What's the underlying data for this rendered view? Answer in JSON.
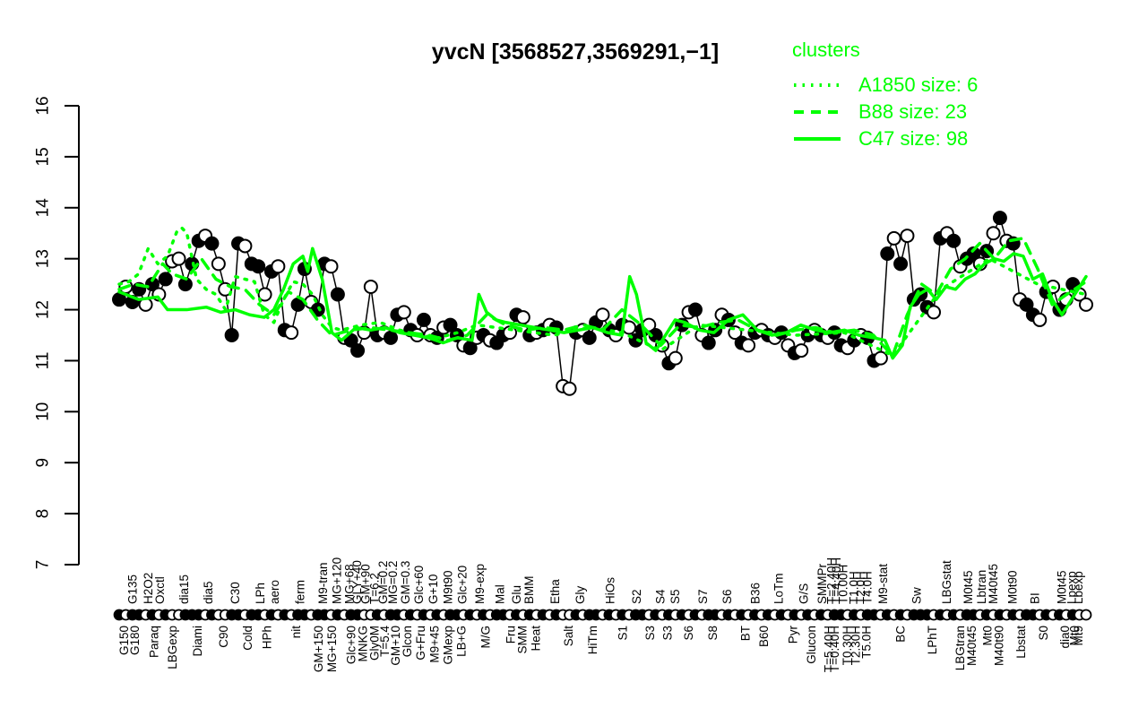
{
  "title": "yvcN [3568527,3569291,−1]",
  "legend": {
    "header": "clusters",
    "color": "#00ff00",
    "items": [
      {
        "label": "A1850 size: 6",
        "style": "dotted"
      },
      {
        "label": "B88 size: 23",
        "style": "dashed"
      },
      {
        "label": "C47 size: 98",
        "style": "solid"
      }
    ]
  },
  "chart_data": {
    "type": "line",
    "title": "yvcN [3568527,3569291,−1]",
    "xlabel": "",
    "ylabel": "",
    "ylim": [
      7,
      16
    ],
    "y_ticks": [
      7,
      8,
      9,
      10,
      11,
      12,
      13,
      14,
      15,
      16
    ],
    "grid": false,
    "legend_position": "top-right",
    "colors": {
      "expression": "#000000",
      "clusters": "#00ff00"
    },
    "x_axis": {
      "top_labels": [
        [
          "G135",
          0.014
        ],
        [
          "H2O2",
          0.03
        ],
        [
          "Oxctl",
          0.042
        ],
        [
          "dia15",
          0.067
        ],
        [
          "dia5",
          0.092
        ],
        [
          "C30",
          0.12
        ],
        [
          "LPh",
          0.146
        ],
        [
          "aero",
          0.161
        ],
        [
          "ferm",
          0.187
        ],
        [
          "M9-tran",
          0.211
        ],
        [
          "MG+120",
          0.225
        ],
        [
          "MG+68",
          0.238
        ],
        [
          "GLY+40",
          0.246
        ],
        [
          "GM+90",
          0.255
        ],
        [
          "T=6.2",
          0.264
        ],
        [
          "GM=0.2",
          0.273
        ],
        [
          "MG=0.2",
          0.283
        ],
        [
          "GM=0.3",
          0.296
        ],
        [
          "Glc+60",
          0.31
        ],
        [
          "G+10",
          0.325
        ],
        [
          "M9t90",
          0.34
        ],
        [
          "Glc+20",
          0.355
        ],
        [
          "M9-exp",
          0.373
        ],
        [
          "Mal",
          0.394
        ],
        [
          "Glu",
          0.411
        ],
        [
          "BMM",
          0.424
        ],
        [
          "Etha",
          0.451
        ],
        [
          "Gly",
          0.477
        ],
        [
          "HiOs",
          0.508
        ],
        [
          "S2",
          0.535
        ],
        [
          "S4",
          0.56
        ],
        [
          "S5",
          0.575
        ],
        [
          "S7",
          0.604
        ],
        [
          "S6",
          0.629
        ],
        [
          "B36",
          0.658
        ],
        [
          "LoTm",
          0.682
        ],
        [
          "G/S",
          0.708
        ],
        [
          "SMMPr",
          0.727
        ],
        [
          "T=2.40H",
          0.737
        ],
        [
          "T=4.40H",
          0.742
        ],
        [
          "T0.00H",
          0.749
        ],
        [
          "T1.0H",
          0.76
        ],
        [
          "T2.0H",
          0.767
        ],
        [
          "T4.0H",
          0.774
        ],
        [
          "M9-stat",
          0.79
        ],
        [
          "Sw",
          0.825
        ],
        [
          "LBGstat",
          0.856
        ],
        [
          "M0t45",
          0.878
        ],
        [
          "Lbtran",
          0.892
        ],
        [
          "M40t45",
          0.904
        ],
        [
          "M0t90",
          0.924
        ],
        [
          "BI",
          0.947
        ],
        [
          "M0t45",
          0.975
        ],
        [
          "Lpexp",
          0.985
        ],
        [
          "Lbexp",
          0.992
        ]
      ],
      "bottom_labels": [
        [
          "G150",
          0.005
        ],
        [
          "G180",
          0.016
        ],
        [
          "Paraq",
          0.036
        ],
        [
          "LBGexp",
          0.055
        ],
        [
          "Diami",
          0.081
        ],
        [
          "C90",
          0.108
        ],
        [
          "Cold",
          0.133
        ],
        [
          "HPh",
          0.153
        ],
        [
          "nit",
          0.183
        ],
        [
          "GM+150",
          0.206
        ],
        [
          "MG+150",
          0.22
        ],
        [
          "Glc+90",
          0.24
        ],
        [
          "MNKG",
          0.252
        ],
        [
          "Gly0M",
          0.264
        ],
        [
          "T=5.4",
          0.275
        ],
        [
          "GM+10",
          0.286
        ],
        [
          "Glcon",
          0.298
        ],
        [
          "G+Fru",
          0.312
        ],
        [
          "M9+45",
          0.326
        ],
        [
          "GMexp",
          0.34
        ],
        [
          "LB+G",
          0.354
        ],
        [
          "M/G",
          0.379
        ],
        [
          "Fru",
          0.405
        ],
        [
          "SMM",
          0.417
        ],
        [
          "Heat",
          0.431
        ],
        [
          "Salt",
          0.465
        ],
        [
          "HiTm",
          0.49
        ],
        [
          "S1",
          0.521
        ],
        [
          "S3",
          0.549
        ],
        [
          "S3",
          0.567
        ],
        [
          "S6",
          0.589
        ],
        [
          "S8",
          0.614
        ],
        [
          "BT",
          0.648
        ],
        [
          "B60",
          0.667
        ],
        [
          "Pyr",
          0.697
        ],
        [
          "Glucon",
          0.716
        ],
        [
          "T=5.40H",
          0.734
        ],
        [
          "T=0.40H",
          0.74
        ],
        [
          "T0.30H",
          0.753
        ],
        [
          "T2.30H",
          0.762
        ],
        [
          "T5.0H",
          0.773
        ],
        [
          "BC",
          0.808
        ],
        [
          "LPhT",
          0.841
        ],
        [
          "LBGtran",
          0.87
        ],
        [
          "M40t45",
          0.882
        ],
        [
          "Mt0",
          0.898
        ],
        [
          "M40t90",
          0.91
        ],
        [
          "Lbstat",
          0.933
        ],
        [
          "S0",
          0.956
        ],
        [
          "dia0",
          0.978
        ],
        [
          "Mt0",
          0.988
        ],
        [
          "Mt9",
          0.992
        ]
      ]
    },
    "series": [
      {
        "name": "gene expression (log2)",
        "kind": "points-line",
        "color": "#000000",
        "markers": "foffofofoofffofooffoffofofoffoffofoffoofoffofofofoffofofoffofofofofoofoffofofoffofofofofoffofofofofofofofofoffofoffofofofffofofoffofofofoffofofof",
        "values": [
          12.2,
          12.45,
          12.15,
          12.4,
          12.1,
          12.5,
          12.3,
          12.6,
          12.95,
          13.0,
          12.5,
          12.9,
          13.35,
          13.45,
          13.3,
          12.9,
          12.4,
          11.5,
          13.3,
          13.25,
          12.9,
          12.85,
          12.3,
          12.75,
          12.85,
          11.6,
          11.55,
          12.1,
          12.8,
          12.15,
          12.0,
          12.9,
          12.85,
          12.3,
          11.45,
          11.4,
          11.2,
          11.55,
          12.45,
          11.5,
          11.55,
          11.45,
          11.9,
          11.95,
          11.6,
          11.5,
          11.8,
          11.5,
          11.45,
          11.65,
          11.7,
          11.5,
          11.3,
          11.25,
          11.45,
          11.5,
          11.4,
          11.35,
          11.5,
          11.55,
          11.9,
          11.85,
          11.5,
          11.55,
          11.6,
          11.7,
          11.65,
          10.5,
          10.45,
          11.55,
          11.6,
          11.45,
          11.75,
          11.9,
          11.6,
          11.5,
          11.7,
          11.65,
          11.4,
          11.6,
          11.7,
          11.5,
          11.3,
          10.95,
          11.05,
          11.7,
          11.95,
          12.0,
          11.5,
          11.35,
          11.6,
          11.9,
          11.8,
          11.55,
          11.35,
          11.3,
          11.55,
          11.6,
          11.5,
          11.45,
          11.55,
          11.3,
          11.15,
          11.2,
          11.5,
          11.6,
          11.5,
          11.45,
          11.55,
          11.3,
          11.25,
          11.4,
          11.5,
          11.45,
          11.0,
          11.05,
          13.1,
          13.4,
          12.9,
          13.45,
          12.2,
          12.3,
          12.05,
          11.95,
          13.4,
          13.5,
          13.35,
          12.85,
          13.0,
          13.1,
          12.9,
          13.15,
          13.5,
          13.8,
          13.35,
          13.3,
          12.2,
          12.1,
          11.9,
          11.8,
          12.35,
          12.45,
          12.0,
          12.2,
          12.5,
          12.3,
          12.1
        ]
      },
      {
        "name": "A1850",
        "kind": "cluster-line",
        "style": "dotted",
        "color": "#00ff00",
        "x": [
          0,
          0.01,
          0.02,
          0.03,
          0.04,
          0.05,
          0.06,
          0.065,
          0.07,
          0.08,
          0.09,
          0.1,
          0.11,
          0.12,
          0.13,
          0.14,
          0.15,
          0.16,
          0.17,
          0.18,
          0.19,
          0.2,
          0.21,
          0.22,
          0.23,
          0.25,
          0.27,
          0.29,
          0.31,
          0.33,
          0.35,
          0.37,
          0.39,
          0.41,
          0.43,
          0.45,
          0.47,
          0.49,
          0.52,
          0.56,
          0.6,
          0.65,
          0.7,
          0.75,
          0.8,
          0.85,
          0.9,
          0.95,
          1.0
        ],
        "y": [
          12.5,
          12.55,
          12.7,
          13.2,
          12.9,
          13.05,
          13.55,
          13.6,
          13.5,
          12.6,
          12.4,
          12.3,
          12.0,
          12.65,
          12.6,
          12.55,
          11.9,
          11.75,
          12.2,
          12.55,
          12.5,
          12.3,
          11.9,
          11.65,
          11.6,
          11.7,
          11.75,
          11.6,
          11.5,
          11.45,
          11.55,
          11.7,
          11.65,
          11.6,
          11.55,
          11.5,
          11.6,
          11.65,
          11.55,
          11.2,
          11.7,
          11.6,
          11.5,
          11.55,
          11.1,
          12.4,
          13.0,
          12.5,
          12.3
        ]
      },
      {
        "name": "B88",
        "kind": "cluster-line",
        "style": "dashed",
        "color": "#00ff00",
        "x": [
          0,
          0.015,
          0.03,
          0.045,
          0.055,
          0.07,
          0.085,
          0.1,
          0.115,
          0.13,
          0.145,
          0.16,
          0.175,
          0.19,
          0.205,
          0.22,
          0.24,
          0.26,
          0.28,
          0.3,
          0.32,
          0.34,
          0.36,
          0.38,
          0.4,
          0.42,
          0.44,
          0.46,
          0.48,
          0.5,
          0.52,
          0.54,
          0.56,
          0.58,
          0.6,
          0.62,
          0.64,
          0.66,
          0.68,
          0.7,
          0.72,
          0.74,
          0.76,
          0.78,
          0.8,
          0.815,
          0.83,
          0.845,
          0.86,
          0.875,
          0.89,
          0.905,
          0.92,
          0.935,
          0.95,
          0.965,
          0.98,
          1.0
        ],
        "y": [
          12.4,
          12.5,
          12.45,
          12.9,
          12.7,
          12.6,
          13.0,
          12.6,
          12.45,
          12.4,
          12.1,
          11.9,
          12.35,
          12.2,
          11.8,
          11.5,
          11.6,
          11.65,
          11.6,
          11.55,
          11.5,
          11.4,
          11.5,
          11.9,
          11.7,
          11.6,
          11.65,
          11.6,
          11.7,
          11.6,
          12.0,
          11.7,
          11.3,
          11.7,
          11.65,
          11.75,
          11.8,
          11.6,
          11.5,
          11.6,
          11.65,
          11.55,
          11.6,
          11.5,
          11.1,
          11.9,
          12.5,
          12.3,
          12.8,
          13.0,
          13.3,
          13.0,
          13.35,
          13.4,
          12.8,
          12.1,
          12.3,
          12.55
        ]
      },
      {
        "name": "C47",
        "kind": "cluster-line",
        "style": "solid",
        "color": "#00ff00",
        "x": [
          0,
          0.02,
          0.04,
          0.05,
          0.07,
          0.09,
          0.105,
          0.12,
          0.135,
          0.15,
          0.16,
          0.17,
          0.18,
          0.19,
          0.195,
          0.2,
          0.21,
          0.22,
          0.23,
          0.245,
          0.26,
          0.275,
          0.29,
          0.305,
          0.32,
          0.335,
          0.35,
          0.365,
          0.372,
          0.38,
          0.39,
          0.4,
          0.415,
          0.43,
          0.445,
          0.46,
          0.475,
          0.49,
          0.505,
          0.52,
          0.528,
          0.535,
          0.545,
          0.555,
          0.565,
          0.575,
          0.585,
          0.6,
          0.615,
          0.63,
          0.645,
          0.66,
          0.675,
          0.69,
          0.705,
          0.72,
          0.735,
          0.75,
          0.765,
          0.78,
          0.792,
          0.8,
          0.81,
          0.818,
          0.827,
          0.836,
          0.845,
          0.855,
          0.865,
          0.875,
          0.885,
          0.895,
          0.905,
          0.915,
          0.925,
          0.935,
          0.945,
          0.955,
          0.965,
          0.975,
          0.985,
          1.0
        ],
        "y": [
          12.35,
          12.2,
          12.25,
          12.0,
          12.0,
          12.05,
          11.95,
          12.0,
          11.9,
          11.85,
          12.0,
          12.4,
          12.9,
          13.05,
          12.75,
          13.2,
          12.6,
          11.55,
          11.4,
          11.65,
          11.6,
          11.65,
          11.55,
          11.5,
          11.45,
          11.35,
          11.45,
          11.4,
          12.3,
          11.95,
          11.8,
          11.75,
          11.7,
          11.65,
          11.6,
          11.55,
          11.6,
          11.65,
          11.55,
          11.5,
          12.65,
          12.3,
          11.35,
          11.2,
          11.5,
          11.8,
          11.75,
          11.6,
          11.55,
          11.8,
          11.9,
          11.6,
          11.5,
          11.55,
          11.7,
          11.6,
          11.55,
          11.6,
          11.5,
          11.45,
          11.4,
          11.05,
          11.3,
          12.05,
          12.3,
          12.4,
          12.2,
          12.45,
          12.4,
          12.6,
          12.7,
          12.9,
          13.0,
          12.95,
          13.1,
          13.05,
          12.6,
          12.7,
          12.2,
          11.9,
          12.2,
          12.65
        ]
      }
    ]
  }
}
